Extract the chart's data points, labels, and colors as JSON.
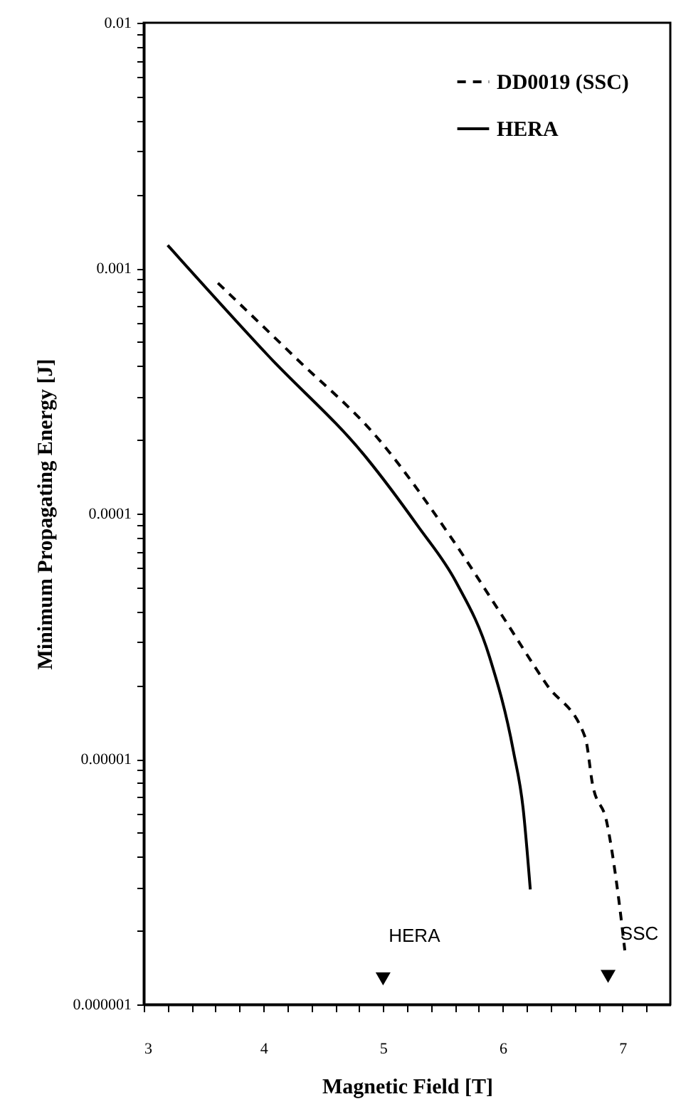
{
  "chart_data": {
    "type": "line",
    "xlabel": "Magnetic Field [T]",
    "ylabel": "Minimum Propagating Energy [J]",
    "log": "y",
    "legend": "top right",
    "xlim": [
      3,
      7.4
    ],
    "xticks": [
      3,
      {
        "value": 3.2,
        "label": null
      },
      {
        "value": 3.4,
        "label": null
      },
      {
        "value": 3.6,
        "label": null
      },
      {
        "value": 3.8,
        "label": null
      },
      4,
      {
        "value": 4.2,
        "label": null
      },
      {
        "value": 4.4,
        "label": null
      },
      {
        "value": 4.6,
        "label": null
      },
      {
        "value": 4.8,
        "label": null
      },
      5,
      {
        "value": 5.2,
        "label": null
      },
      {
        "value": 5.4,
        "label": null
      },
      {
        "value": 5.6,
        "label": null
      },
      {
        "value": 5.8,
        "label": null
      },
      6,
      {
        "value": 6.2,
        "label": null
      },
      {
        "value": 6.4,
        "label": null
      },
      {
        "value": 6.6,
        "label": null
      },
      {
        "value": 6.8,
        "label": null
      },
      7,
      {
        "value": 7.2,
        "label": null
      }
    ],
    "ylim": [
      1e-06,
      0.01
    ],
    "yticks": [
      {
        "value": 1e-06,
        "label": "0.000001"
      },
      {
        "value": 2e-06,
        "label": null
      },
      {
        "value": 3e-06,
        "label": null
      },
      {
        "value": 4e-06,
        "label": null
      },
      {
        "value": 5e-06,
        "label": null
      },
      {
        "value": 6e-06,
        "label": null
      },
      {
        "value": 7e-06,
        "label": null
      },
      {
        "value": 8e-06,
        "label": null
      },
      {
        "value": 9e-06,
        "label": null
      },
      {
        "value": 1e-05,
        "label": "0.00001"
      },
      {
        "value": 2e-05,
        "label": null
      },
      {
        "value": 3e-05,
        "label": null
      },
      {
        "value": 4e-05,
        "label": null
      },
      {
        "value": 5e-05,
        "label": null
      },
      {
        "value": 6e-05,
        "label": null
      },
      {
        "value": 7e-05,
        "label": null
      },
      {
        "value": 8e-05,
        "label": null
      },
      {
        "value": 9e-05,
        "label": null
      },
      {
        "value": 0.0001,
        "label": "0.0001"
      },
      {
        "value": 0.0002,
        "label": null
      },
      {
        "value": 0.0003,
        "label": null
      },
      {
        "value": 0.0004,
        "label": null
      },
      {
        "value": 0.0005,
        "label": null
      },
      {
        "value": 0.0006,
        "label": null
      },
      {
        "value": 0.0007,
        "label": null
      },
      {
        "value": 0.0008,
        "label": null
      },
      {
        "value": 0.0009,
        "label": null
      },
      {
        "value": 0.001,
        "label": "0.001"
      },
      {
        "value": 0.002,
        "label": null
      },
      {
        "value": 0.003,
        "label": null
      },
      {
        "value": 0.004,
        "label": null
      },
      {
        "value": 0.005,
        "label": null
      },
      {
        "value": 0.006,
        "label": null
      },
      {
        "value": 0.007,
        "label": null
      },
      {
        "value": 0.008,
        "label": null
      },
      {
        "value": 0.009,
        "label": null
      },
      {
        "value": 0.01,
        "label": "0.01"
      }
    ],
    "series": [
      {
        "name": "DD0019 (SSC)",
        "color": "#000000",
        "line_style": "dashed",
        "x": [
          3.62,
          4.25,
          4.97,
          5.56,
          5.99,
          6.37,
          6.69,
          6.75,
          6.87,
          6.96,
          7.02
        ],
        "values": [
          0.00087,
          0.00044,
          0.000199,
          8.1e-05,
          3.87e-05,
          2e-05,
          1.22e-05,
          7.9e-06,
          5.5e-06,
          2.9e-06,
          1.66e-06
        ]
      },
      {
        "name": "HERA",
        "color": "#000000",
        "line_style": "solid",
        "x": [
          3.2,
          4.04,
          4.86,
          5.29,
          5.61,
          5.89,
          6.09,
          6.17,
          6.23
        ],
        "values": [
          0.00124,
          0.00044,
          0.000169,
          8.9e-05,
          5.26e-05,
          2.6e-05,
          1.07e-05,
          6.3e-06,
          2.94e-06
        ]
      },
      {
        "type": "scatter",
        "marker": "triangle",
        "color": "#000000",
        "x": [
          5.0,
          6.88
        ],
        "values": [
          1.27e-06,
          1.3e-06
        ]
      }
    ],
    "annotations": [
      {
        "text": "HERA",
        "x": 5.0,
        "y": 1.27e-06
      },
      {
        "text": "SSC",
        "x": 6.88,
        "y": 1.3e-06
      }
    ]
  }
}
